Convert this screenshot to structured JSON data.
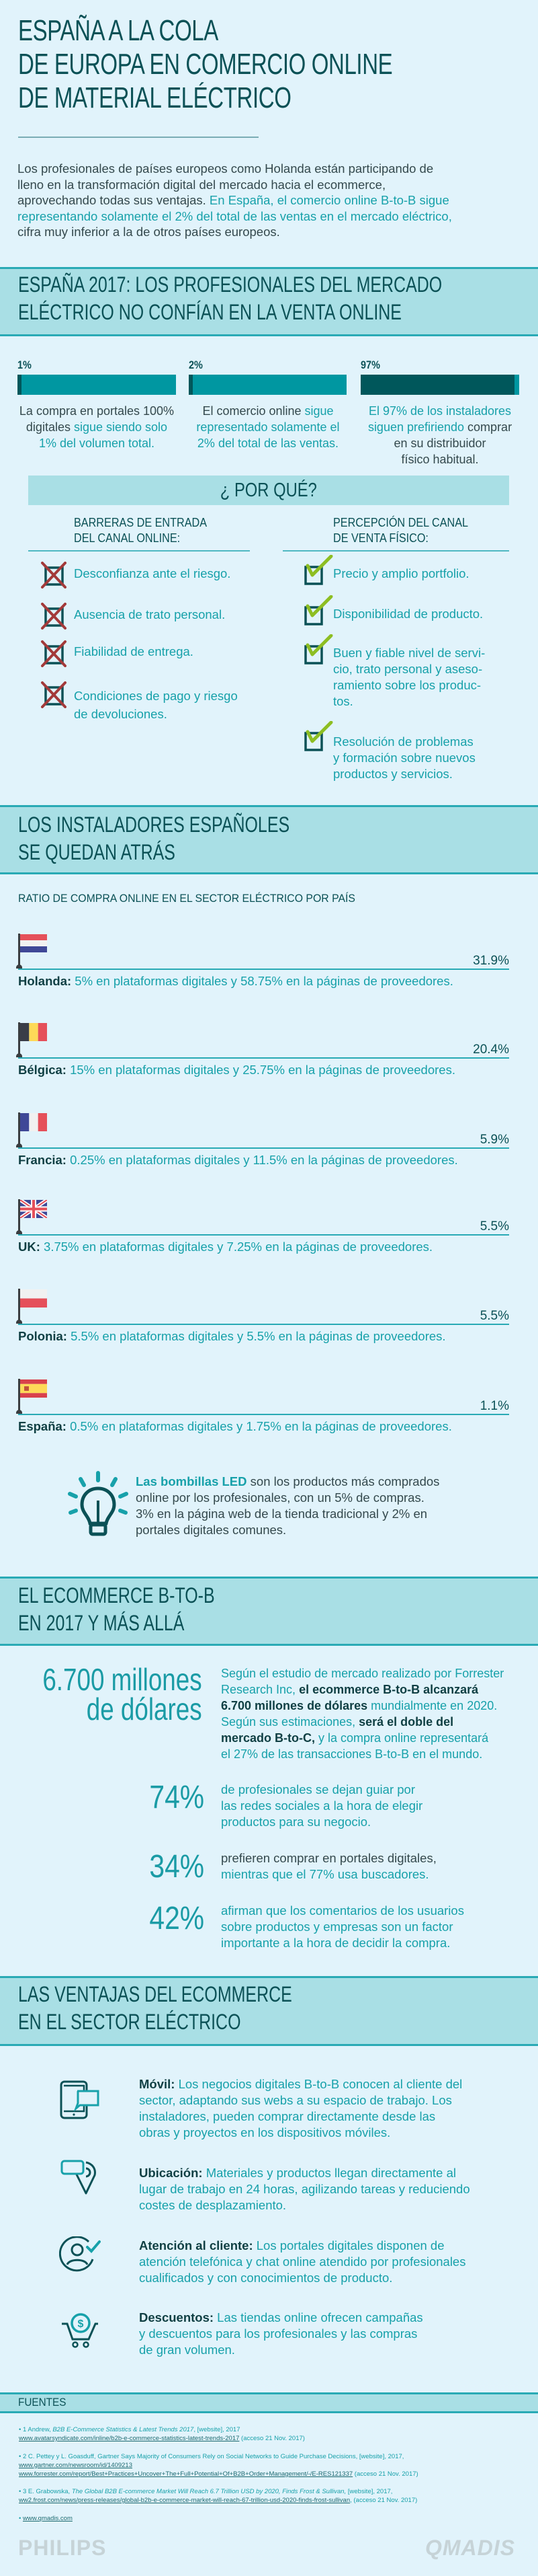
{
  "colors": {
    "background": "#e1f3fb",
    "heading": "#0b5156",
    "highlight": "#17a1aa",
    "band": "#a9dfe5",
    "band_border": "#29aab5",
    "bar": "#0097a1",
    "bar_fill": "#00575b",
    "cross": "#a33a3a",
    "check": "#8dbe22"
  },
  "header": {
    "title": "ESPAÑA A LA COLA\nDE EUROPA EN COMERCIO ONLINE\nDE MATERIAL ELÉCTRICO",
    "intro": [
      {
        "text": "Los profesionales de países europeos como Holanda están participando de\nlleno en la transformación digital del mercado hacia el ecommerce,\naprovechando todas sus ventajas. ",
        "style": "dark"
      },
      {
        "text": "En España, el comercio online B-to-B sigue\nrepresentando solamente el 2% del total de las ventas en el mercado eléctrico,",
        "style": "hl"
      },
      {
        "text": "\ncifra muy inferior a la de otros países europeos.",
        "style": "dark"
      }
    ]
  },
  "trust": {
    "title": "ESPAÑA 2017: LOS PROFESIONALES DEL MERCADO\nELÉCTRICO NO CONFÍAN EN LA VENTA ONLINE",
    "stats": [
      {
        "label": "1%",
        "percent": 1,
        "text": [
          {
            "text": "La compra en portales 100%\ndigitales ",
            "style": "dark"
          },
          {
            "text": "sigue siendo solo\n1% del volumen total.",
            "style": "hl"
          }
        ]
      },
      {
        "label": "2%",
        "percent": 2,
        "text": [
          {
            "text": "El comercio online ",
            "style": "dark"
          },
          {
            "text": "sigue\nrepresentado solamente el\n2%  del total de las ventas.",
            "style": "hl"
          }
        ]
      },
      {
        "label": "97%",
        "percent": 97,
        "text": [
          {
            "text": "El 97% de los instaladores\nsiguen prefiriendo",
            "style": "hl"
          },
          {
            "text": " comprar\nen su distribuidor\nfísico habitual.",
            "style": "dark"
          }
        ]
      }
    ],
    "why": {
      "title": "¿ POR QUÉ?",
      "barriers": {
        "title": "BARRERAS DE ENTRADA\nDEL CANAL ONLINE:",
        "icon": "crossed-checkbox-icon",
        "items": [
          "Desconfianza ante el riesgo.",
          "Ausencia de trato personal.",
          "Fiabilidad de entrega.",
          "Condiciones de pago y riesgo\nde devoluciones."
        ]
      },
      "physical": {
        "title": "PERCEPCIÓN DEL CANAL\nDE VENTA FÍSICO:",
        "icon": "checked-checkbox-icon",
        "items": [
          "Precio y amplio portfolio.",
          "Disponibilidad de producto.",
          "Buen y fiable nivel de servi-\ncio, trato personal y aseso-\nramiento sobre los produc-\ntos.",
          "Resolución de problemas\ny formación sobre nuevos\nproductos y servicios."
        ]
      }
    }
  },
  "countries_section": {
    "title": "LOS INSTALADORES ESPAÑOLES\nSE QUEDAN ATRÁS",
    "subtitle": "RATIO DE COMPRA ONLINE EN EL SECTOR ELÉCTRICO POR PAÍS",
    "countries": [
      {
        "name": "Holanda:",
        "value": "31.9%",
        "flag": "netherlands-flag-icon",
        "desc": " 5% en plataformas digitales y 58.75% en la páginas de proveedores."
      },
      {
        "name": "Bélgica:",
        "value": "20.4%",
        "flag": "belgium-flag-icon",
        "desc": " 15% en plataformas digitales y 25.75% en la páginas de proveedores."
      },
      {
        "name": "Francia:",
        "value": "5.9%",
        "flag": "france-flag-icon",
        "desc": " 0.25% en plataformas digitales y 11.5% en la páginas de proveedores."
      },
      {
        "name": "UK:",
        "value": "5.5%",
        "flag": "uk-flag-icon",
        "desc": " 3.75% en plataformas digitales y 7.25% en la páginas de proveedores."
      },
      {
        "name": "Polonia:",
        "value": "5.5%",
        "flag": "poland-flag-icon",
        "desc": " 5.5% en plataformas digitales y 5.5% en la páginas de proveedores."
      },
      {
        "name": "España:",
        "value": "1.1%",
        "flag": "spain-flag-icon",
        "desc": " 0.5% en plataformas digitales y 1.75% en la páginas de proveedores."
      }
    ],
    "led": [
      {
        "text": "Las bombillas LED",
        "style": "hlbold"
      },
      {
        "text": " son los productos más comprados\nonline por los profesionales, con un 5% de compras.\n3% en la página web de la tienda tradicional y 2% en\nportales digitales comunes.",
        "style": "dark"
      }
    ]
  },
  "b2b": {
    "title": "EL ECOMMERCE B-TO-B\nEN 2017 Y MÁS ALLÁ",
    "big_figure": "6.700 millones\nde dólares",
    "big_text": [
      {
        "text": "Según el estudio de mercado realizado por Forrester\nResearch Inc, ",
        "style": "hl"
      },
      {
        "text": "el ecommerce B-to-B alcanzará\n6.700 millones de dólares",
        "style": "bold"
      },
      {
        "text": " mundialmente en 2020.\nSegún sus estimaciones, ",
        "style": "hl"
      },
      {
        "text": "será el doble del\nmercado B-to-C,",
        "style": "bold"
      },
      {
        "text": " y la compra online representará\nel 27% de las transacciones B-to-B en el mundo.",
        "style": "hl"
      }
    ],
    "stats": [
      {
        "value": "74%",
        "text": [
          {
            "text": "de profesionales se dejan guiar por\nlas redes sociales a la hora de elegir\nproductos para su negocio.",
            "style": "hl"
          }
        ]
      },
      {
        "value": "34%",
        "text": [
          {
            "text": "prefieren comprar en portales digitales,\n",
            "style": "dark"
          },
          {
            "text": "mientras que el 77% usa buscadores.",
            "style": "hl"
          }
        ]
      },
      {
        "value": "42%",
        "text": [
          {
            "text": "afirman que los comentarios de los usuarios\nsobre productos y empresas son un factor\nimportante a la hora de decidir la compra.",
            "style": "hl"
          }
        ]
      }
    ]
  },
  "advantages": {
    "title": "LAS VENTAJAS DEL ECOMMERCE\nEN EL SECTOR ELÉCTRICO",
    "items": [
      {
        "icon": "mobile-chat-icon",
        "label": "Móvil:",
        "text": " Los negocios digitales B-to-B conocen al cliente del\nsector, adaptando sus webs a su espacio de trabajo. Los\ninstaladores, pueden comprar directamente desde las\nobras y proyectos en los dispositivos móviles."
      },
      {
        "icon": "delivery-location-icon",
        "label": "Ubicación:",
        "text": " Materiales y productos llegan directamente al\nlugar de trabajo en 24 horas, agilizando tareas y reduciendo\ncostes de desplazamiento."
      },
      {
        "icon": "customer-check-icon",
        "label": "Atención al cliente:",
        "text": " Los portales digitales disponen de\natención telefónica y chat online atendido por profesionales\ncualificados y con conocimientos de producto."
      },
      {
        "icon": "discount-cart-icon",
        "label": "Descuentos:",
        "text": " Las tiendas online ofrecen campañas\ny descuentos para los profesionales y las compras\nde gran volumen."
      }
    ]
  },
  "sources": {
    "title": "FUENTES",
    "refs": [
      [
        {
          "text": "• 1 Andrew, ",
          "style": "plain"
        },
        {
          "text": "B2B E-Commerce Statistics & Latest Trends 2017",
          "style": "it"
        },
        {
          "text": ", [website], 2017\n  ",
          "style": "plain"
        },
        {
          "text": "www.avatarsyndicate.com/inline/b2b-e-commerce-statistics-latest-trends-2017",
          "style": "link"
        },
        {
          "text": " (acceso 21 Nov. 2017)",
          "style": "plain"
        }
      ],
      [
        {
          "text": "• 2 C. Pettey y L. Goasduff, Gartner Says Majority of Consumers Rely on Social Networks to Guide Purchase Decisions, [website], 2017,\n  ",
          "style": "plain"
        },
        {
          "text": "www.gartner.com/newsroom/id/1409213",
          "style": "link"
        },
        {
          "text": "\n  ",
          "style": "plain"
        },
        {
          "text": "www.forrester.com/report/Best+Practices+Uncover+The+Full+Potential+Of+B2B+Order+Management/-/E-RES121337",
          "style": "link"
        },
        {
          "text": " (acceso 21 Nov. 2017)",
          "style": "plain"
        }
      ],
      [
        {
          "text": "• 3 E. Grabowska, ",
          "style": "plain"
        },
        {
          "text": "The Global B2B E-commerce Market Will Reach 6.7 Trillion USD by 2020, Finds Frost & Sullivan,",
          "style": "it"
        },
        {
          "text": " [website], 2017,\n  ",
          "style": "plain"
        },
        {
          "text": "ww2.frost.com/news/press-releases/global-b2b-e-commerce-market-will-reach-67-trillion-usd-2020-finds-frost-sullivan",
          "style": "link"
        },
        {
          "text": ", (acceso 21 Nov. 2017)",
          "style": "plain"
        }
      ],
      [
        {
          "text": "• ",
          "style": "plain"
        },
        {
          "text": "www.qmadis.com",
          "style": "link"
        }
      ]
    ],
    "logos": [
      "PHILIPS",
      "QMADIS"
    ]
  }
}
